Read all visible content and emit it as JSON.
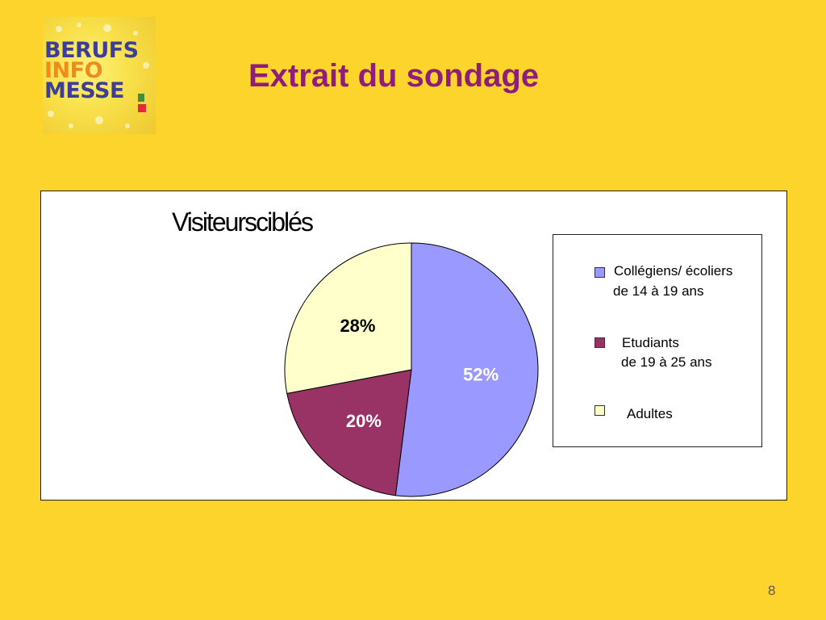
{
  "logo": {
    "lines": [
      "BERUFS",
      "INFO",
      "MESSE"
    ]
  },
  "page_title": "Extrait du sondage",
  "page_number": "8",
  "chart_data": {
    "type": "pie",
    "title": "Visiteursciblés",
    "slices": [
      {
        "label": [
          "Collégiens/ écoliers",
          "de 14 à 19 ans"
        ],
        "value": 52,
        "data_label": "52%",
        "color": "#9999FF",
        "label_color": "#FFFFFF"
      },
      {
        "label": [
          "Etudiants",
          "de 19 à 25 ans"
        ],
        "value": 20,
        "data_label": "20%",
        "color": "#993366",
        "label_color": "#FFFFFF"
      },
      {
        "label": [
          "Adultes"
        ],
        "value": 28,
        "data_label": "28%",
        "color": "#FFFFCC",
        "label_color": "#000000"
      }
    ],
    "legend_position": "right"
  }
}
